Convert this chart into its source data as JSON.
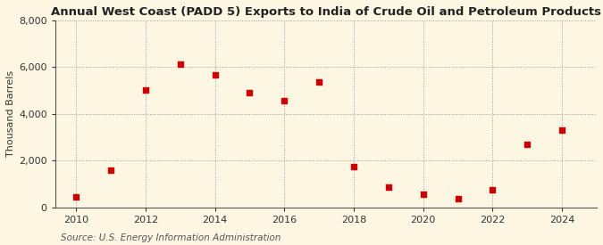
{
  "title": "Annual West Coast (PADD 5) Exports to India of Crude Oil and Petroleum Products",
  "ylabel": "Thousand Barrels",
  "source": "Source: U.S. Energy Information Administration",
  "background_color": "#fdf6e3",
  "plot_bg_color": "#fdf6e3",
  "years": [
    2010,
    2011,
    2012,
    2013,
    2014,
    2015,
    2016,
    2017,
    2018,
    2019,
    2020,
    2021,
    2022,
    2023,
    2024
  ],
  "values": [
    450,
    1600,
    5000,
    6100,
    5650,
    4900,
    4550,
    5350,
    1750,
    850,
    550,
    350,
    750,
    2700,
    3300
  ],
  "marker_color": "#cc0000",
  "marker": "s",
  "marker_size": 16,
  "ylim": [
    0,
    8000
  ],
  "yticks": [
    0,
    2000,
    4000,
    6000,
    8000
  ],
  "xlim": [
    2009.4,
    2025.0
  ],
  "xticks": [
    2010,
    2012,
    2014,
    2016,
    2018,
    2020,
    2022,
    2024
  ],
  "grid_color": "#999999",
  "grid_style": ":",
  "title_fontsize": 9.5,
  "axis_fontsize": 8,
  "source_fontsize": 7.5,
  "ylabel_fontsize": 8
}
